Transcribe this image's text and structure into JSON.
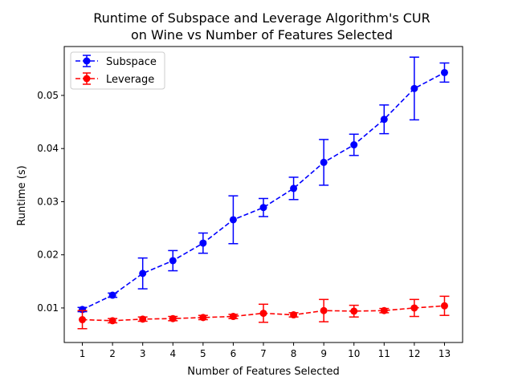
{
  "chart_data": {
    "type": "line",
    "title_lines": [
      "Runtime of Subspace and Leverage Algorithm's CUR",
      "on Wine vs Number of Features Selected"
    ],
    "xlabel": "Number of Features Selected",
    "ylabel": "Runtime (s)",
    "xlim": [
      0.4,
      13.6
    ],
    "ylim": [
      0.0035,
      0.0592
    ],
    "x": [
      1,
      2,
      3,
      4,
      5,
      6,
      7,
      8,
      9,
      10,
      11,
      12,
      13
    ],
    "x_ticks": [
      1,
      2,
      3,
      4,
      5,
      6,
      7,
      8,
      9,
      10,
      11,
      12,
      13
    ],
    "y_ticks": [
      0.01,
      0.02,
      0.03,
      0.04,
      0.05
    ],
    "y_tick_labels": [
      "0.01",
      "0.02",
      "0.03",
      "0.04",
      "0.05"
    ],
    "legend_position": "top-left",
    "series": [
      {
        "name": "Subspace",
        "color": "#0000ff",
        "values": [
          0.0097,
          0.0124,
          0.0165,
          0.0189,
          0.0222,
          0.0266,
          0.0289,
          0.0325,
          0.0374,
          0.0407,
          0.0455,
          0.0513,
          0.0543
        ],
        "errors": [
          0.0004,
          0.0004,
          0.0029,
          0.0019,
          0.0019,
          0.0045,
          0.0017,
          0.0021,
          0.0043,
          0.002,
          0.0027,
          0.0059,
          0.0018
        ]
      },
      {
        "name": "Leverage",
        "color": "#ff0000",
        "values": [
          0.0078,
          0.0076,
          0.0079,
          0.008,
          0.0082,
          0.0084,
          0.009,
          0.0087,
          0.0095,
          0.0094,
          0.0095,
          0.01,
          0.0104
        ],
        "errors": [
          0.0017,
          0.0004,
          0.0004,
          0.0004,
          0.0004,
          0.0004,
          0.0017,
          0.0004,
          0.0021,
          0.0011,
          0.0004,
          0.0016,
          0.0018
        ]
      }
    ]
  }
}
